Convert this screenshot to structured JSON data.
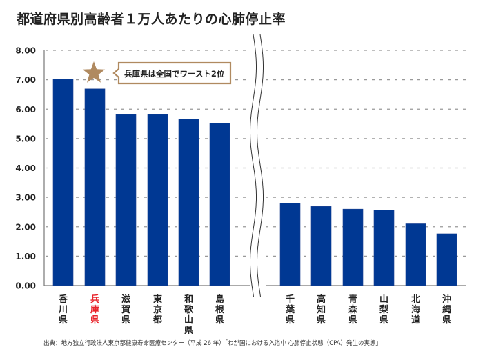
{
  "chart_data": {
    "type": "bar",
    "title": "都道府県別高齢者１万人あたりの心肺停止率",
    "xlabel": "",
    "ylabel": "",
    "ylim": [
      0,
      8
    ],
    "yticks": [
      "0.00",
      "1.00",
      "2.00",
      "3.00",
      "4.00",
      "5.00",
      "6.00",
      "7.00",
      "8.00"
    ],
    "grid": true,
    "axis_break": "between 島根県 and 千葉県",
    "categories": [
      "香川県",
      "兵庫県",
      "滋賀県",
      "東京都",
      "和歌山県",
      "島根県",
      "千葉県",
      "高知県",
      "青森県",
      "山梨県",
      "北海道",
      "沖縄県"
    ],
    "values": [
      7.02,
      6.69,
      5.82,
      5.82,
      5.66,
      5.52,
      2.8,
      2.69,
      2.6,
      2.57,
      2.1,
      1.76
    ],
    "highlight_category": "兵庫県",
    "annotation": {
      "text": "兵庫県は全国でワースト2位",
      "target": "兵庫県",
      "icon": "star-icon"
    },
    "colors": {
      "bar": "#003893",
      "highlight_label": "#e8232a",
      "annotation": "#b08a60",
      "grid": "#999999",
      "axis": "#777777"
    },
    "source": "出典：地方独立行政法人東京都健康寿命医療センター（平成 26 年）「わが国における入浴中 心肺停止状態（CPA）発生の実態」"
  }
}
